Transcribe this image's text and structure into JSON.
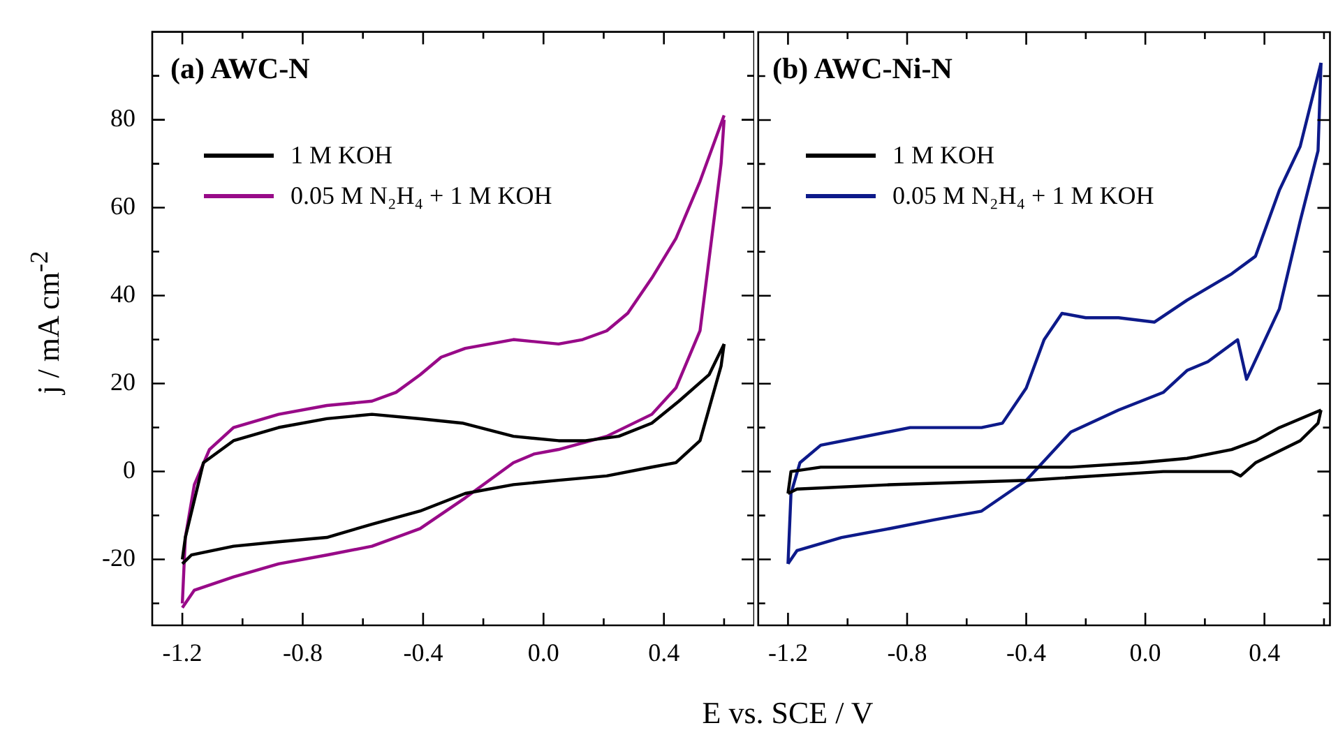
{
  "chart_data": [
    {
      "type": "line",
      "title": "(a) AWC-N",
      "xlabel": "E vs. SCE / V",
      "ylabel": "j / mA cm$^{-2}$",
      "legend": "top left",
      "xlim": [
        -1.3,
        0.7
      ],
      "xticks": [
        -1.2,
        {
          "value": -1.0,
          "label": null
        },
        -0.8,
        {
          "value": -0.6,
          "label": null
        },
        -0.4,
        {
          "value": -0.2,
          "label": null
        },
        {
          "value": 0,
          "label": "0.0"
        },
        {
          "value": 0.2,
          "label": null
        },
        0.4,
        {
          "value": 0.6,
          "label": null
        }
      ],
      "ylim": [
        -35,
        100
      ],
      "yticks": [
        {
          "value": -30,
          "label": null
        },
        -20,
        {
          "value": -10,
          "label": null
        },
        0,
        {
          "value": 10,
          "label": null
        },
        20,
        {
          "value": 30,
          "label": null
        },
        40,
        {
          "value": 50,
          "label": null
        },
        60,
        {
          "value": 70,
          "label": null
        },
        80,
        {
          "value": 90,
          "label": null
        }
      ],
      "series": [
        {
          "name": "1 M KOH",
          "color": "#000000",
          "x": [
            -1.2,
            -1.19,
            -1.13,
            -1.03,
            -0.88,
            -0.72,
            -0.57,
            -0.41,
            -0.27,
            -0.1,
            0.05,
            0.14,
            0.25,
            0.36,
            0.45,
            0.55,
            0.6
          ],
          "values": [
            -20,
            -15,
            2,
            7,
            10,
            12,
            13,
            12,
            11,
            8,
            7,
            7,
            8,
            11,
            16,
            22,
            29
          ]
        },
        {
          "color": "#000000",
          "x": [
            -1.2,
            -1.17,
            -1.03,
            -0.88,
            -0.72,
            -0.57,
            -0.41,
            -0.26,
            -0.1,
            0.05,
            0.21,
            0.36,
            0.44,
            0.52,
            0.59,
            0.6
          ],
          "values": [
            -21,
            -19,
            -17,
            -16,
            -15,
            -12,
            -9,
            -5,
            -3,
            -2,
            -1,
            1,
            2,
            7,
            24,
            29
          ]
        },
        {
          "name": "0.05 M N₂H₄ + 1 M KOH",
          "color": "#980a88",
          "x": [
            -1.2,
            -1.19,
            -1.16,
            -1.11,
            -1.03,
            -0.88,
            -0.72,
            -0.57,
            -0.49,
            -0.41,
            -0.34,
            -0.26,
            -0.1,
            0.05,
            0.13,
            0.21,
            0.28,
            0.36,
            0.44,
            0.52,
            0.6
          ],
          "values": [
            -30,
            -15,
            -3,
            5,
            10,
            13,
            15,
            16,
            18,
            22,
            26,
            28,
            30,
            29,
            30,
            32,
            36,
            44,
            53,
            66,
            81
          ]
        },
        {
          "color": "#980a88",
          "x": [
            -1.2,
            -1.16,
            -1.03,
            -0.88,
            -0.72,
            -0.57,
            -0.41,
            -0.26,
            -0.1,
            -0.03,
            0.05,
            0.21,
            0.36,
            0.44,
            0.52,
            0.59,
            0.6
          ],
          "values": [
            -31,
            -27,
            -24,
            -21,
            -19,
            -17,
            -13,
            -6,
            2,
            4,
            5,
            8,
            13,
            19,
            32,
            70,
            80
          ]
        }
      ]
    },
    {
      "type": "line",
      "title": "(b) AWC-Ni-N",
      "legend": "top left",
      "tick_labels": "x",
      "xlim": [
        -1.3,
        0.62
      ],
      "xticks": [
        -1.2,
        {
          "value": -1.0,
          "label": null
        },
        -0.8,
        {
          "value": -0.6,
          "label": null
        },
        -0.4,
        {
          "value": -0.2,
          "label": null
        },
        {
          "value": 0,
          "label": "0.0"
        },
        {
          "value": 0.2,
          "label": null
        },
        0.4,
        {
          "value": 0.6,
          "label": null
        }
      ],
      "ylim": [
        -35,
        100
      ],
      "yticks": [
        {
          "value": -30,
          "label": null
        },
        -20,
        {
          "value": -10,
          "label": null
        },
        0,
        {
          "value": 10,
          "label": null
        },
        20,
        {
          "value": 30,
          "label": null
        },
        40,
        {
          "value": 50,
          "label": null
        },
        60,
        {
          "value": 70,
          "label": null
        },
        80,
        {
          "value": 90,
          "label": null
        }
      ],
      "series": [
        {
          "name": "1 M KOH",
          "color": "#000000",
          "x": [
            -1.2,
            -1.19,
            -1.09,
            -0.71,
            -0.25,
            -0.02,
            0.14,
            0.29,
            0.37,
            0.45,
            0.59
          ],
          "values": [
            -5,
            0,
            1,
            1,
            1,
            2,
            3,
            5,
            7,
            10,
            14
          ]
        },
        {
          "color": "#000000",
          "x": [
            -1.2,
            -1.17,
            -0.86,
            -0.4,
            0.06,
            0.29,
            0.32,
            0.37,
            0.52,
            0.58,
            0.59
          ],
          "values": [
            -5,
            -4,
            -3,
            -2,
            0,
            0,
            -1,
            2,
            7,
            11,
            14
          ]
        },
        {
          "name": "0.05 M N₂H₄ + 1 M KOH",
          "color": "#0d1a8a",
          "x": [
            -1.2,
            -1.19,
            -1.16,
            -1.09,
            -0.94,
            -0.79,
            -0.55,
            -0.48,
            -0.4,
            -0.34,
            -0.28,
            -0.2,
            -0.09,
            0.03,
            0.14,
            0.29,
            0.37,
            0.45,
            0.52,
            0.59
          ],
          "values": [
            -21,
            -5,
            2,
            6,
            8,
            10,
            10,
            11,
            19,
            30,
            36,
            35,
            35,
            34,
            39,
            45,
            49,
            64,
            74,
            93
          ]
        },
        {
          "color": "#0d1a8a",
          "x": [
            -1.2,
            -1.17,
            -1.02,
            -0.86,
            -0.71,
            -0.55,
            -0.4,
            -0.25,
            -0.09,
            0.06,
            0.14,
            0.21,
            0.31,
            0.34,
            0.45,
            0.52,
            0.58,
            0.59
          ],
          "values": [
            -21,
            -18,
            -15,
            -13,
            -11,
            -9,
            -2,
            9,
            14,
            18,
            23,
            25,
            30,
            21,
            37,
            57,
            73,
            93
          ]
        }
      ]
    }
  ]
}
